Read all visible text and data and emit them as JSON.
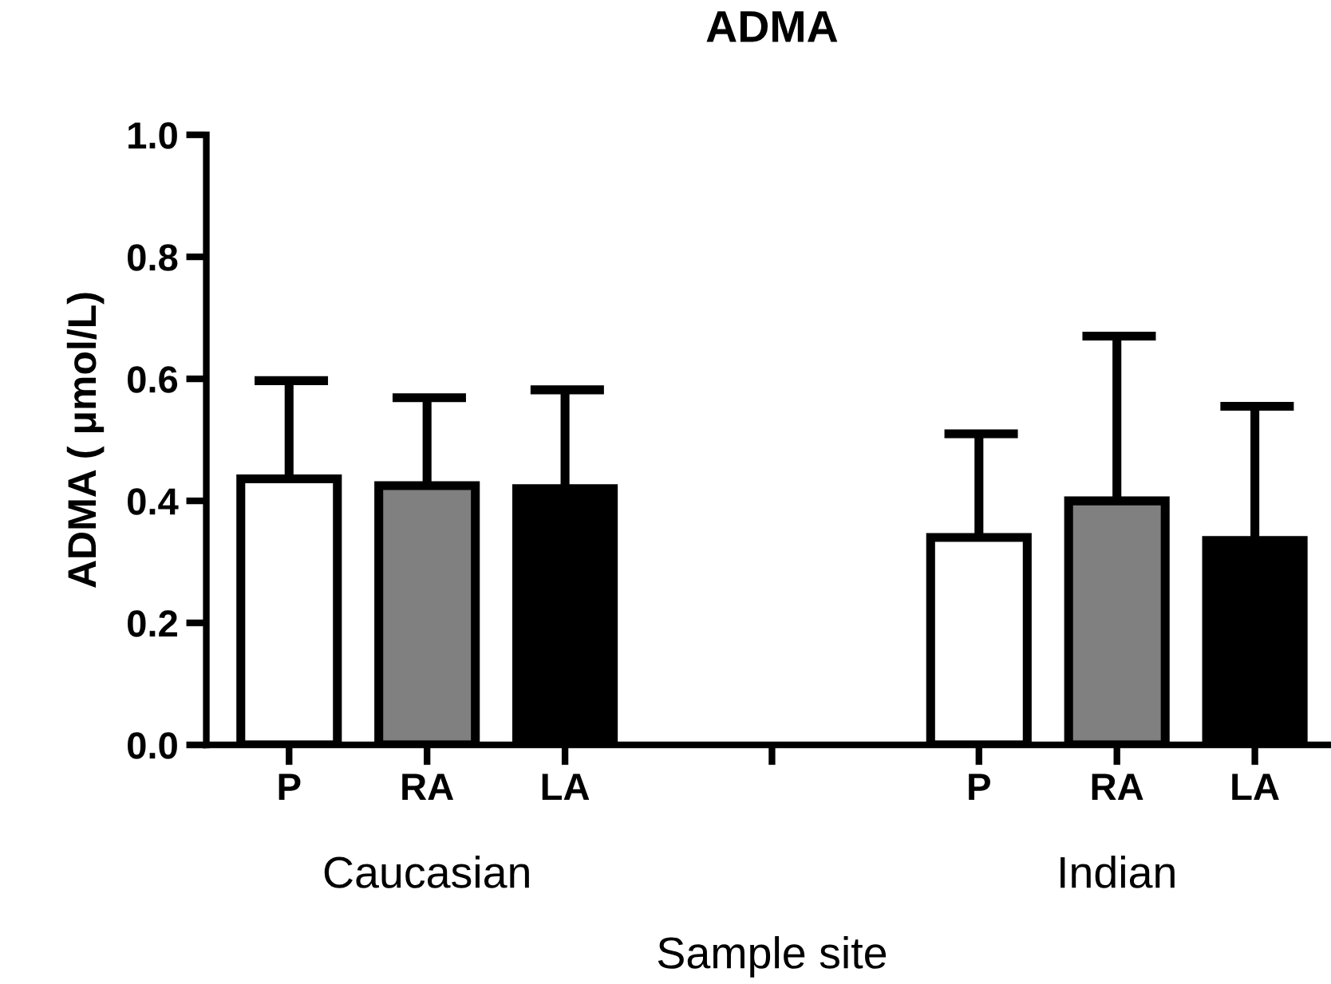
{
  "chart_data": {
    "type": "bar",
    "title": "ADMA",
    "xlabel": "Sample site",
    "ylabel": "ADMA ( μmol/L)",
    "categories": [
      "P",
      "RA",
      "LA",
      null,
      null,
      "P",
      "RA",
      "LA"
    ],
    "values": [
      0.436,
      0.425,
      0.42,
      null,
      null,
      0.34,
      0.4,
      0.335
    ],
    "errors": [
      [
        0.436,
        0.597
      ],
      [
        0.425,
        0.569
      ],
      [
        0.42,
        0.582
      ],
      null,
      null,
      [
        0.34,
        0.51
      ],
      [
        0.4,
        0.67
      ],
      [
        0.335,
        0.555
      ]
    ],
    "colors": [
      "#ffffff",
      "#808080",
      "#000000",
      null,
      null,
      "#ffffff",
      "#808080",
      "#000000"
    ],
    "ylim": [
      0,
      1.0
    ],
    "yticks": [
      {
        "value": 0,
        "label": "0.0"
      },
      0.2,
      0.4,
      0.6,
      0.8,
      {
        "value": 1,
        "label": "1.0"
      }
    ],
    "annotations": [
      "Caucasian",
      "Indian"
    ],
    "grid": false,
    "legend": false
  }
}
